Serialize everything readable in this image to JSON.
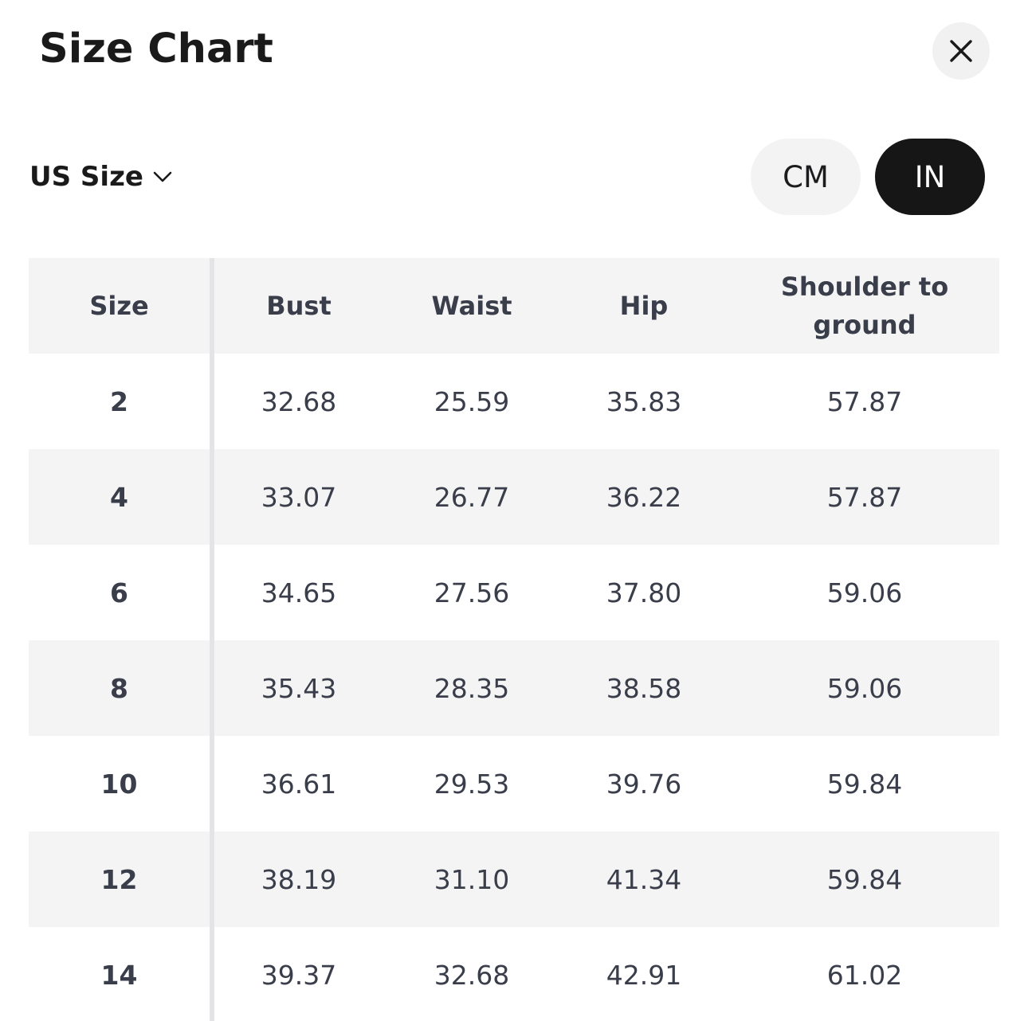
{
  "modal": {
    "title": "Size Chart",
    "close_icon": "close-icon"
  },
  "controls": {
    "size_system": "US Size",
    "size_system_icon": "chevron-down-icon",
    "units": [
      {
        "label": "CM",
        "selected": false
      },
      {
        "label": "IN",
        "selected": true
      }
    ]
  },
  "table": {
    "headers": [
      "Size",
      "Bust",
      "Waist",
      "Hip",
      "Shoulder to ground"
    ],
    "rows": [
      [
        "2",
        "32.68",
        "25.59",
        "35.83",
        "57.87"
      ],
      [
        "4",
        "33.07",
        "26.77",
        "36.22",
        "57.87"
      ],
      [
        "6",
        "34.65",
        "27.56",
        "37.80",
        "59.06"
      ],
      [
        "8",
        "35.43",
        "28.35",
        "38.58",
        "59.06"
      ],
      [
        "10",
        "36.61",
        "29.53",
        "39.76",
        "59.84"
      ],
      [
        "12",
        "38.19",
        "31.10",
        "41.34",
        "59.84"
      ],
      [
        "14",
        "39.37",
        "32.68",
        "42.91",
        "61.02"
      ]
    ]
  },
  "colors": {
    "selected_toggle_bg": "#161616",
    "unselected_toggle_bg": "#f3f3f3",
    "shaded_row_bg": "#f4f4f4",
    "cell_text": "#3a3d4a"
  }
}
